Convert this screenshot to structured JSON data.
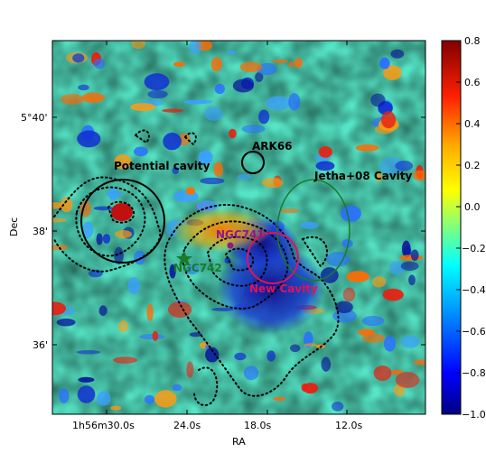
{
  "chart_data": {
    "type": "heatmap",
    "title": "",
    "xlabel": "RA",
    "ylabel": "Dec",
    "x_ticks": [
      "1h56m30.0s",
      "24.0s",
      "18.0s",
      "12.0s"
    ],
    "y_ticks": [
      "5°40'",
      "38'",
      "36'"
    ],
    "colorbar": {
      "range": [
        -1.0,
        0.8
      ],
      "ticks": [
        "0.8",
        "0.6",
        "0.4",
        "0.2",
        "0.0",
        "−0.2",
        "−0.4",
        "−0.6",
        "−0.8",
        "−1.0"
      ],
      "colormap": "jet"
    },
    "annotations": [
      {
        "text": "ARK66",
        "color": "#000000"
      },
      {
        "text": "Potential cavity",
        "color": "#000000"
      },
      {
        "text": "Jetha+08 Cavity",
        "color": "#000000"
      },
      {
        "text": "NGC741",
        "color": "#8b1a8b"
      },
      {
        "text": "NGC742",
        "color": "#1a7a2a"
      },
      {
        "text": "New Cavity",
        "color": "#e0115f"
      }
    ],
    "regions": [
      {
        "name": "ARK66",
        "shape": "circle",
        "color": "#000000"
      },
      {
        "name": "Potential cavity",
        "shape": "circle",
        "color": "#000000"
      },
      {
        "name": "Jetha+08 Cavity",
        "shape": "ellipse",
        "color": "#1a7a2a"
      },
      {
        "name": "New Cavity",
        "shape": "circle",
        "color": "#e0115f"
      }
    ],
    "grid": false
  }
}
